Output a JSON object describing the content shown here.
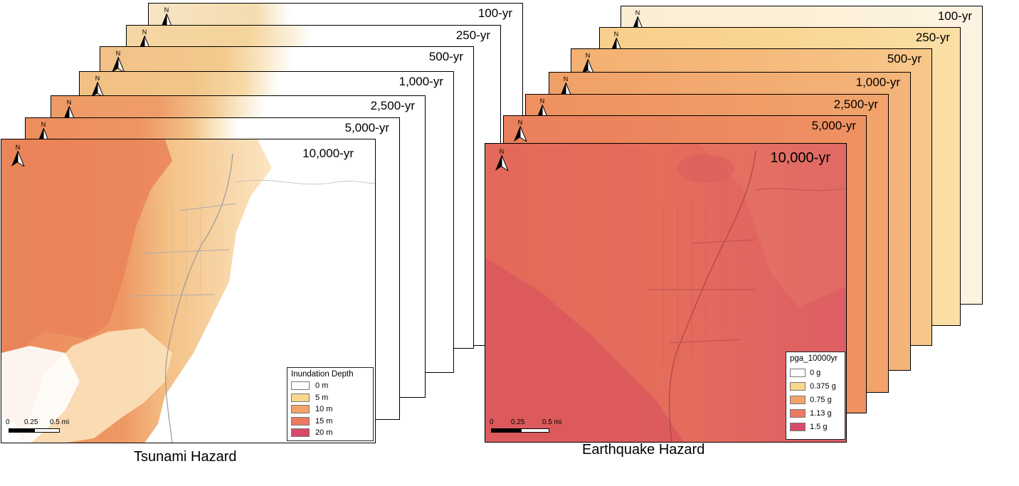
{
  "tsunami": {
    "caption": "Tsunami Hazard",
    "frames": [
      "100-yr",
      "250-yr",
      "500-yr",
      "1,000-yr",
      "2,500-yr",
      "5,000-yr",
      "10,000-yr"
    ],
    "north_label": "N",
    "legend": {
      "title": "Inundation Depth",
      "items": [
        {
          "label": "0 m",
          "color": "#ffffff"
        },
        {
          "label": "5 m",
          "color": "#f7d88c"
        },
        {
          "label": "10 m",
          "color": "#f3a36a"
        },
        {
          "label": "15 m",
          "color": "#ec7a62"
        },
        {
          "label": "20 m",
          "color": "#d8496a"
        }
      ]
    },
    "scale": {
      "zero": "0",
      "mid": "0.25",
      "end": "0.5 mi"
    }
  },
  "earthquake": {
    "caption": "Earthquake Hazard",
    "frames": [
      "100-yr",
      "250-yr",
      "500-yr",
      "1,000-yr",
      "2,500-yr",
      "5,000-yr",
      "10,000-yr"
    ],
    "north_label": "N",
    "legend": {
      "title": "pga_10000yr",
      "items": [
        {
          "label": "0 g",
          "color": "#ffffff"
        },
        {
          "label": "0.375 g",
          "color": "#f7d88c"
        },
        {
          "label": "0.75 g",
          "color": "#f3a36a"
        },
        {
          "label": "1.13 g",
          "color": "#ec7a62"
        },
        {
          "label": "1.5 g",
          "color": "#d8496a"
        }
      ]
    },
    "scale": {
      "zero": "0",
      "mid": "0.25",
      "end": "0.5 mi"
    }
  }
}
